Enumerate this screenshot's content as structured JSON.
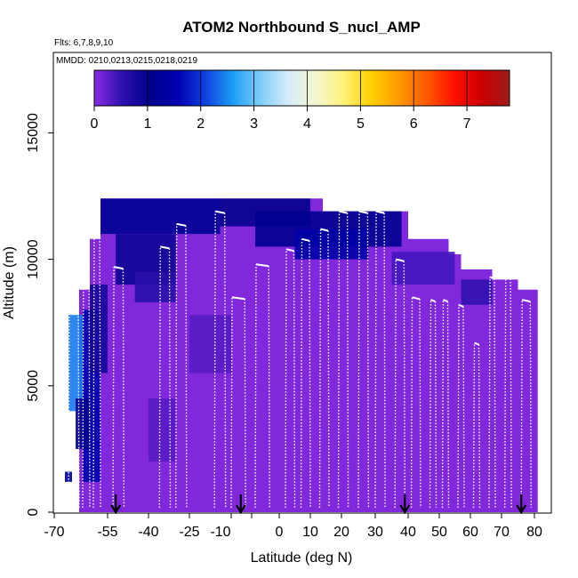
{
  "chart_data": {
    "type": "heatmap",
    "title": "ATOM2 Northbound S_nucl_AMP",
    "subtitle_flights": "Flts: 6,7,8,9,10",
    "subtitle_dates": "MMDD: 0210,0213,0215,0218,0219",
    "xlabel": "Latitude (deg N)",
    "ylabel": "Altitude (m)",
    "xticks": [
      "-70",
      "-55",
      "-40",
      "-25",
      "-10",
      "0",
      "10",
      "20",
      "30",
      "40",
      "50",
      "60",
      "70",
      "80"
    ],
    "yticks": [
      "0",
      "5000",
      "10000",
      "15000"
    ],
    "yrange": [
      0,
      17500
    ],
    "colorbar": {
      "ticks": [
        "0",
        "1",
        "2",
        "3",
        "4",
        "5",
        "6",
        "7"
      ],
      "range": [
        0,
        7.8
      ],
      "colors": [
        "#8a2be2",
        "#2f10b0",
        "#00008b",
        "#0000b0",
        "#1040e0",
        "#1c9cf5",
        "#7ecdf7",
        "#d6ecfb",
        "#f4f7d0",
        "#fff27a",
        "#ffd000",
        "#ff9a00",
        "#ff5a00",
        "#ff1000",
        "#cc0000",
        "#9b1c1c"
      ]
    },
    "arrows_at_latitude": [
      -52,
      -8,
      39,
      76
    ],
    "ceiling_profile": [
      {
        "lat": -63,
        "alt": 8800
      },
      {
        "lat": -60,
        "alt": 10800
      },
      {
        "lat": -57,
        "alt": 12400
      },
      {
        "lat": -48,
        "alt": 12400
      },
      {
        "lat": -30,
        "alt": 12400
      },
      {
        "lat": -14,
        "alt": 12400
      },
      {
        "lat": -10,
        "alt": 12400
      },
      {
        "lat": -5,
        "alt": 12400
      },
      {
        "lat": 10,
        "alt": 12400
      },
      {
        "lat": 14,
        "alt": 11900
      },
      {
        "lat": 28,
        "alt": 11900
      },
      {
        "lat": 38,
        "alt": 11900
      },
      {
        "lat": 40,
        "alt": 10800
      },
      {
        "lat": 48,
        "alt": 10800
      },
      {
        "lat": 53,
        "alt": 10200
      },
      {
        "lat": 57,
        "alt": 9600
      },
      {
        "lat": 63,
        "alt": 9600
      },
      {
        "lat": 67,
        "alt": 9200
      },
      {
        "lat": 72,
        "alt": 9200
      },
      {
        "lat": 75,
        "alt": 8800
      },
      {
        "lat": 81,
        "alt": 8800
      }
    ],
    "patches": [
      {
        "lat0": -57,
        "lat1": -14,
        "alt0": 11000,
        "alt1": 12400,
        "value": 1.2
      },
      {
        "lat0": -14,
        "lat1": 10,
        "alt0": 11300,
        "alt1": 12400,
        "value": 1.0
      },
      {
        "lat0": -5,
        "lat1": 38,
        "alt0": 10500,
        "alt1": 11900,
        "value": 1.1
      },
      {
        "lat0": 5,
        "lat1": 28,
        "alt0": 10000,
        "alt1": 11200,
        "value": 1.4
      },
      {
        "lat0": -52,
        "lat1": -30,
        "alt0": 9000,
        "alt1": 11000,
        "value": 0.9
      },
      {
        "lat0": -45,
        "lat1": -30,
        "alt0": 8300,
        "alt1": 9500,
        "value": 0.6
      },
      {
        "lat0": -62,
        "lat1": -57,
        "alt0": 1200,
        "alt1": 8000,
        "value": 1.5
      },
      {
        "lat0": -66,
        "lat1": -62,
        "alt0": 4000,
        "alt1": 7800,
        "value": 2.4
      },
      {
        "lat0": -64,
        "lat1": -60,
        "alt0": 2500,
        "alt1": 4500,
        "value": 1.0
      },
      {
        "lat0": -60,
        "lat1": -55,
        "alt0": 5500,
        "alt1": 9000,
        "value": 0.8
      },
      {
        "lat0": -67,
        "lat1": -65,
        "alt0": 1200,
        "alt1": 1600,
        "value": 1.3
      },
      {
        "lat0": 35,
        "lat1": 55,
        "alt0": 9000,
        "alt1": 10300,
        "value": 0.4
      },
      {
        "lat0": 57,
        "lat1": 67,
        "alt0": 8200,
        "alt1": 9200,
        "value": 0.5
      },
      {
        "lat0": -25,
        "lat1": -10,
        "alt0": 5500,
        "alt1": 7800,
        "value": 0.3
      },
      {
        "lat0": -40,
        "lat1": -30,
        "alt0": 2000,
        "alt1": 4500,
        "value": 0.3
      }
    ],
    "flight_profiles": [
      {
        "lat_start": -66,
        "lat_end": -63,
        "alt_top": 8800
      },
      {
        "lat_start": -62,
        "lat_end": -60,
        "alt_top": 10800
      },
      {
        "lat_start": -59,
        "lat_end": -57,
        "alt_top": 11900
      },
      {
        "lat_start": -53,
        "lat_end": -49,
        "alt_top": 9700
      },
      {
        "lat_start": -36,
        "lat_end": -32,
        "alt_top": 10500
      },
      {
        "lat_start": -30,
        "lat_end": -26,
        "alt_top": 11400
      },
      {
        "lat_start": -16,
        "lat_end": -12,
        "alt_top": 11900
      },
      {
        "lat_start": -10,
        "lat_end": -7,
        "alt_top": 8500
      },
      {
        "lat_start": -5,
        "lat_end": -2,
        "alt_top": 9800
      },
      {
        "lat_start": 2,
        "lat_end": 5,
        "alt_top": 10400
      },
      {
        "lat_start": 7,
        "lat_end": 10,
        "alt_top": 10800
      },
      {
        "lat_start": 13,
        "lat_end": 16,
        "alt_top": 11200
      },
      {
        "lat_start": 19,
        "lat_end": 22,
        "alt_top": 11900
      },
      {
        "lat_start": 25,
        "lat_end": 28,
        "alt_top": 11900
      },
      {
        "lat_start": 30,
        "lat_end": 33,
        "alt_top": 11900
      },
      {
        "lat_start": 36,
        "lat_end": 39,
        "alt_top": 10000
      },
      {
        "lat_start": 41,
        "lat_end": 44,
        "alt_top": 8500
      },
      {
        "lat_start": 47,
        "lat_end": 49,
        "alt_top": 8400
      },
      {
        "lat_start": 51,
        "lat_end": 53,
        "alt_top": 8400
      },
      {
        "lat_start": 56,
        "lat_end": 58,
        "alt_top": 8200
      },
      {
        "lat_start": 61,
        "lat_end": 63,
        "alt_top": 6700
      },
      {
        "lat_start": 66,
        "lat_end": 68,
        "alt_top": 9300
      },
      {
        "lat_start": 71,
        "lat_end": 73,
        "alt_top": 9300
      },
      {
        "lat_start": 76,
        "lat_end": 79,
        "alt_top": 8400
      }
    ]
  }
}
